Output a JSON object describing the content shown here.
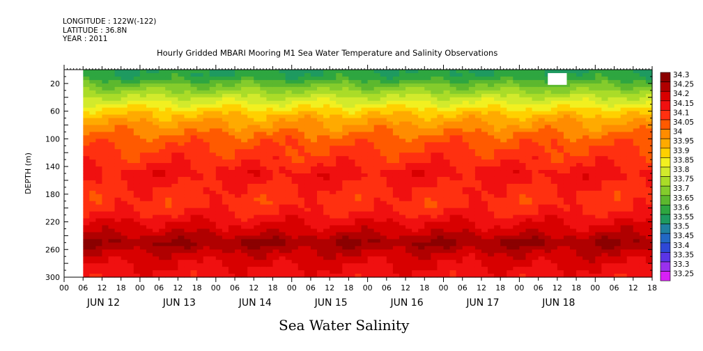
{
  "header": {
    "longitude": "LONGITUDE : 122W(-122)",
    "latitude": "LATITUDE : 36.8N",
    "year": "YEAR : 2011",
    "title": "Hourly Gridded MBARI Mooring M1 Sea Water Temperature and Salinity Observations"
  },
  "footer_title": "Sea Water Salinity",
  "chart_data": {
    "type": "heatmap",
    "title": "Hourly Gridded MBARI Mooring M1 Sea Water Temperature and Salinity Observations",
    "variable": "Sea Water Salinity",
    "ylabel": "DEPTH (m)",
    "ylim": [
      300,
      0
    ],
    "y_ticks": [
      20,
      60,
      100,
      140,
      180,
      220,
      260,
      300
    ],
    "x_tick_labels": [
      "00",
      "06",
      "12",
      "18",
      "00",
      "06",
      "12",
      "18",
      "00",
      "06",
      "12",
      "18",
      "00",
      "06",
      "12",
      "18",
      "00",
      "06",
      "12",
      "18",
      "00",
      "06",
      "12",
      "18",
      "00",
      "06",
      "12",
      "18",
      "00",
      "06",
      "12",
      "18"
    ],
    "x_day_labels": [
      "JUN 12",
      "JUN 13",
      "JUN 14",
      "JUN 15",
      "JUN 16",
      "JUN 17",
      "JUN 18"
    ],
    "x_range_hours": [
      0,
      186
    ],
    "data_start_hour": 6,
    "color_levels": [
      {
        "label": "34.3",
        "color": "#8b0000"
      },
      {
        "label": "34.25",
        "color": "#b00000"
      },
      {
        "label": "34.2",
        "color": "#d80000"
      },
      {
        "label": "34.15",
        "color": "#f01010"
      },
      {
        "label": "34.1",
        "color": "#ff3010"
      },
      {
        "label": "34.05",
        "color": "#ff5a00"
      },
      {
        "label": "34",
        "color": "#ff8c00"
      },
      {
        "label": "33.95",
        "color": "#ffaa00"
      },
      {
        "label": "33.9",
        "color": "#ffd000"
      },
      {
        "label": "33.85",
        "color": "#f2f020"
      },
      {
        "label": "33.8",
        "color": "#d2ea2c"
      },
      {
        "label": "33.75",
        "color": "#aadc28"
      },
      {
        "label": "33.7",
        "color": "#84cc2c"
      },
      {
        "label": "33.65",
        "color": "#5cb82e"
      },
      {
        "label": "33.6",
        "color": "#2ea640"
      },
      {
        "label": "33.55",
        "color": "#1e9a60"
      },
      {
        "label": "33.5",
        "color": "#2080a0"
      },
      {
        "label": "33.45",
        "color": "#2268c4"
      },
      {
        "label": "33.4",
        "color": "#2e48d6"
      },
      {
        "label": "33.35",
        "color": "#5a34e6"
      },
      {
        "label": "33.3",
        "color": "#9a30ee"
      },
      {
        "label": "33.25",
        "color": "#d820f6"
      }
    ],
    "depth_profile": [
      {
        "depth": 5,
        "value": 33.58
      },
      {
        "depth": 12,
        "value": 33.6
      },
      {
        "depth": 20,
        "value": 33.66
      },
      {
        "depth": 30,
        "value": 33.72
      },
      {
        "depth": 40,
        "value": 33.78
      },
      {
        "depth": 50,
        "value": 33.84
      },
      {
        "depth": 60,
        "value": 33.9
      },
      {
        "depth": 70,
        "value": 33.95
      },
      {
        "depth": 85,
        "value": 34.0
      },
      {
        "depth": 100,
        "value": 34.05
      },
      {
        "depth": 115,
        "value": 34.08
      },
      {
        "depth": 135,
        "value": 34.11
      },
      {
        "depth": 150,
        "value": 34.15
      },
      {
        "depth": 170,
        "value": 34.12
      },
      {
        "depth": 190,
        "value": 34.1
      },
      {
        "depth": 205,
        "value": 34.12
      },
      {
        "depth": 220,
        "value": 34.17
      },
      {
        "depth": 235,
        "value": 34.21
      },
      {
        "depth": 250,
        "value": 34.28
      },
      {
        "depth": 265,
        "value": 34.22
      },
      {
        "depth": 280,
        "value": 34.18
      },
      {
        "depth": 300,
        "value": 34.15
      }
    ],
    "missing_data": [
      {
        "hours": [
          0,
          6
        ],
        "depth": [
          0,
          300
        ]
      },
      {
        "hours": [
          153,
          159
        ],
        "depth": [
          5,
          22
        ]
      }
    ]
  }
}
